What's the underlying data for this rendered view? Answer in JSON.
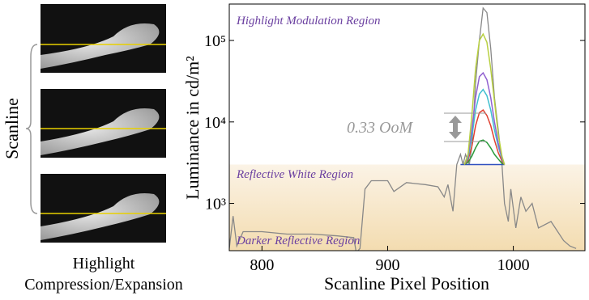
{
  "chart_data": {
    "type": "line",
    "y_label": "Luminance in cd/m²",
    "x_label": "Scanline Pixel Position",
    "side_label": "Scanline",
    "caption": [
      "Highlight",
      "Compression/Expansion"
    ],
    "annotations": [
      "Highlight Modulation Region",
      "Reflective White Region",
      "Darker Reflective Region",
      "0.33 OoM"
    ],
    "log_y": true,
    "xlim": [
      774,
      1057
    ],
    "xticks": [
      800,
      900,
      1000
    ],
    "ylim": [
      263,
      280000
    ],
    "yticks": [
      {
        "value": 1000,
        "label": "10³"
      },
      {
        "value": 10000,
        "label": "10⁴"
      },
      {
        "value": 100000,
        "label": "10⁵"
      }
    ],
    "series": [
      {
        "color": "#888888",
        "x": [
          774,
          777,
          780,
          785,
          800,
          820,
          840,
          860,
          873,
          875,
          878,
          882,
          887,
          900,
          905,
          915,
          930,
          940,
          945,
          948,
          952,
          955,
          958,
          960,
          962,
          965,
          967,
          970,
          973,
          976,
          979,
          982,
          985,
          988,
          991,
          993,
          996,
          998,
          1002,
          1006,
          1010,
          1015,
          1020,
          1030,
          1040,
          1045,
          1050
        ],
        "values": [
          280,
          700,
          300,
          450,
          450,
          420,
          420,
          400,
          380,
          250,
          280,
          1500,
          1900,
          1900,
          1400,
          1800,
          1700,
          1600,
          1200,
          1700,
          800,
          3000,
          4000,
          3000,
          4000,
          3000,
          5000,
          30000,
          100000,
          250000,
          220000,
          80000,
          20000,
          8000,
          3000,
          1000,
          600,
          1500,
          500,
          1200,
          800,
          1000,
          500,
          600,
          350,
          300,
          280
        ]
      },
      {
        "color": "#3050c0",
        "x": [
          958,
          993
        ],
        "values": [
          3000,
          3000
        ]
      },
      {
        "color": "#2a9a3a",
        "x": [
          961,
          964,
          967,
          970,
          973,
          976,
          979,
          982,
          985,
          988,
          991,
          993
        ],
        "values": [
          3000,
          3200,
          3800,
          4800,
          5800,
          6000,
          5600,
          4800,
          4000,
          3500,
          3100,
          3000
        ]
      },
      {
        "color": "#e04030",
        "x": [
          961,
          964,
          967,
          970,
          973,
          976,
          979,
          982,
          985,
          988,
          991,
          993
        ],
        "values": [
          3000,
          3400,
          5000,
          9000,
          13000,
          14000,
          12000,
          9000,
          6000,
          4200,
          3300,
          3000
        ]
      },
      {
        "color": "#40c0d0",
        "x": [
          961,
          964,
          967,
          970,
          973,
          976,
          979,
          982,
          985,
          988,
          991,
          993
        ],
        "values": [
          3000,
          3600,
          6500,
          14000,
          22000,
          25000,
          21000,
          14000,
          8000,
          5000,
          3500,
          3000
        ]
      },
      {
        "color": "#9060d0",
        "x": [
          961,
          964,
          967,
          970,
          973,
          976,
          979,
          982,
          985,
          988,
          991,
          993
        ],
        "values": [
          3000,
          3800,
          8000,
          20000,
          36000,
          40000,
          33000,
          20000,
          10000,
          5500,
          3600,
          3000
        ]
      },
      {
        "color": "#b8d040",
        "x": [
          961,
          964,
          967,
          970,
          973,
          976,
          979,
          982,
          985,
          988,
          991,
          993
        ],
        "values": [
          3000,
          4000,
          12000,
          45000,
          100000,
          120000,
          95000,
          45000,
          18000,
          7000,
          3800,
          3000
        ]
      }
    ]
  }
}
